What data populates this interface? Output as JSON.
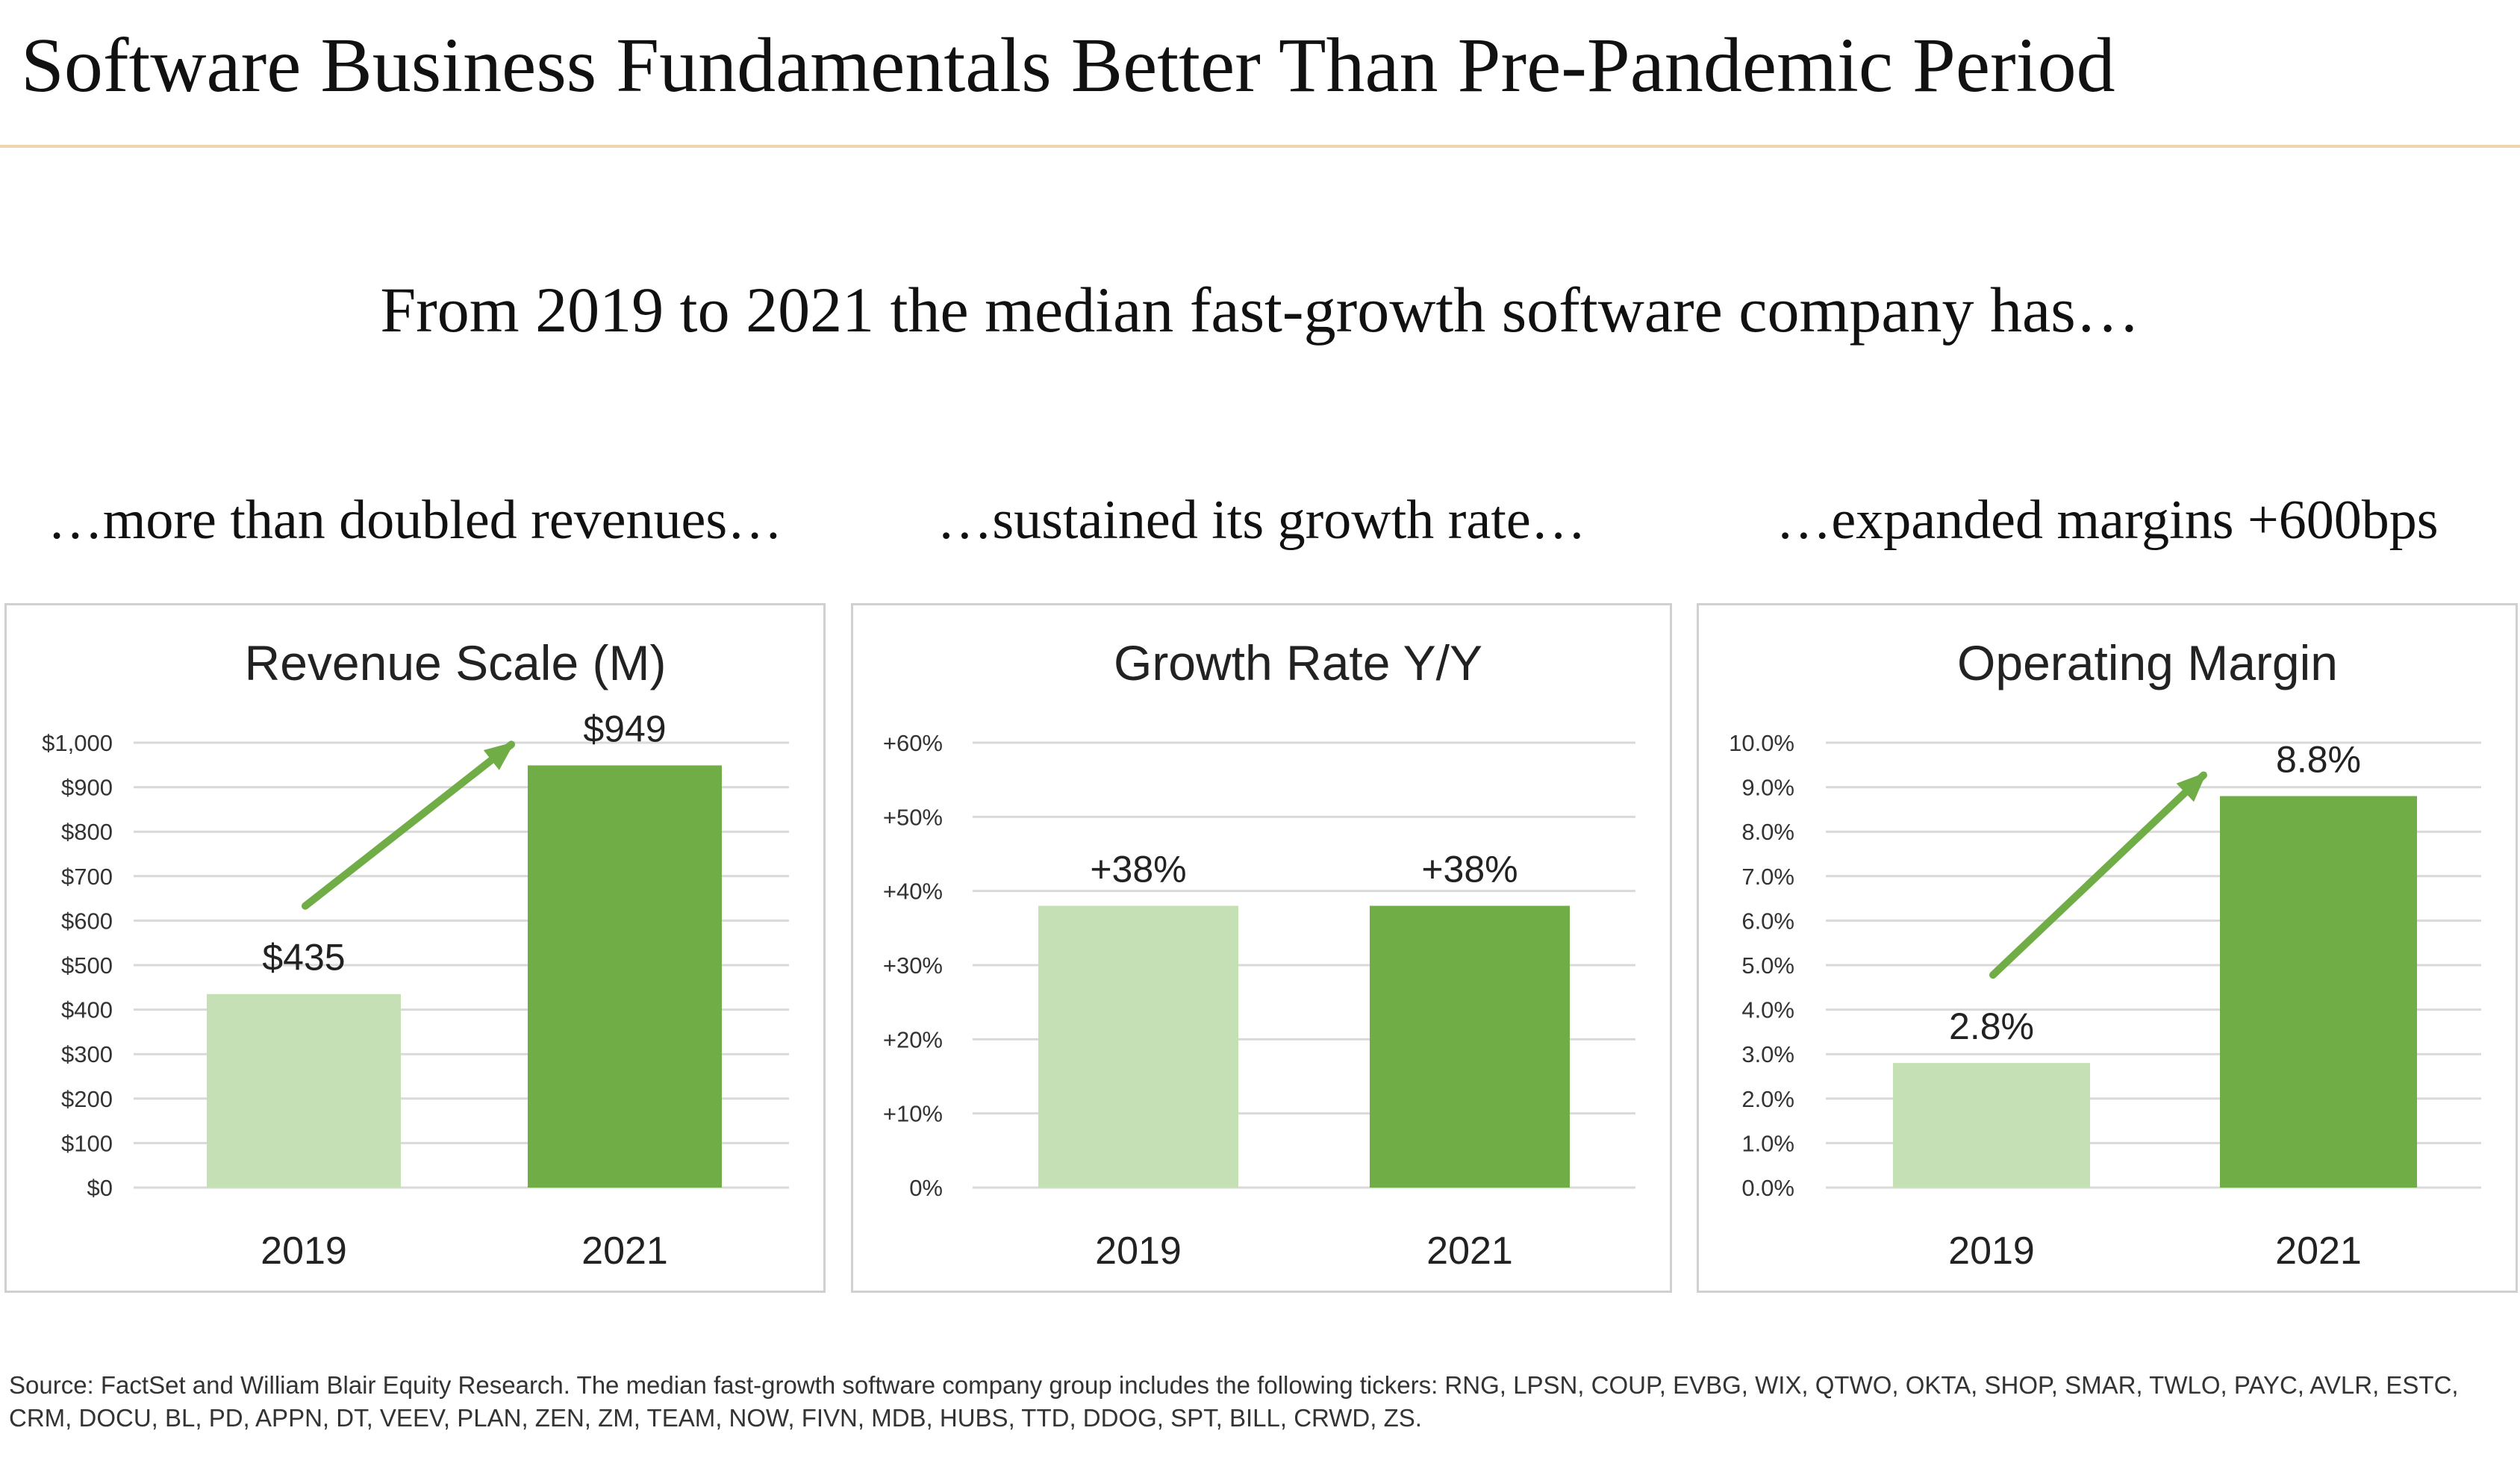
{
  "header": {
    "title": "Software Business Fundamentals Better Than Pre-Pandemic Period",
    "subtitle": "From 2019 to 2021 the median fast-growth software company has…"
  },
  "captions": [
    "…more than doubled revenues…",
    "…sustained its growth rate…",
    "…expanded margins +600bps"
  ],
  "colors": {
    "bar_2019": "#c5e0b4",
    "bar_2021": "#70ad47",
    "arrow": "#70ad47",
    "gridline": "#d9d9d9",
    "title_rule": "#f1d5aa"
  },
  "chart_data": [
    {
      "type": "bar",
      "title": "Revenue Scale (M)",
      "categories": [
        "2019",
        "2021"
      ],
      "values": [
        435,
        949
      ],
      "data_labels": [
        "$435",
        "$949"
      ],
      "ylim": [
        0,
        1000
      ],
      "yticks": [
        0,
        100,
        200,
        300,
        400,
        500,
        600,
        700,
        800,
        900,
        1000
      ],
      "ytick_labels": [
        "$0",
        "$100",
        "$200",
        "$300",
        "$400",
        "$500",
        "$600",
        "$700",
        "$800",
        "$900",
        "$1,000"
      ],
      "grid": true,
      "trend_arrow": true
    },
    {
      "type": "bar",
      "title": "Growth Rate Y/Y",
      "categories": [
        "2019",
        "2021"
      ],
      "values": [
        38,
        38
      ],
      "data_labels": [
        "+38%",
        "+38%"
      ],
      "ylim": [
        0,
        60
      ],
      "yticks": [
        0,
        10,
        20,
        30,
        40,
        50,
        60
      ],
      "ytick_labels": [
        "0%",
        "+10%",
        "+20%",
        "+30%",
        "+40%",
        "+50%",
        "+60%"
      ],
      "grid": true,
      "trend_arrow": false
    },
    {
      "type": "bar",
      "title": "Operating Margin",
      "categories": [
        "2019",
        "2021"
      ],
      "values": [
        2.8,
        8.8
      ],
      "data_labels": [
        "2.8%",
        "8.8%"
      ],
      "ylim": [
        0,
        10
      ],
      "yticks": [
        0,
        1,
        2,
        3,
        4,
        5,
        6,
        7,
        8,
        9,
        10
      ],
      "ytick_labels": [
        "0.0%",
        "1.0%",
        "2.0%",
        "3.0%",
        "4.0%",
        "5.0%",
        "6.0%",
        "7.0%",
        "8.0%",
        "9.0%",
        "10.0%"
      ],
      "grid": true,
      "trend_arrow": true
    }
  ],
  "footnote": "Source: FactSet and William Blair Equity Research. The median fast-growth software company group includes the following tickers: RNG, LPSN, COUP, EVBG, WIX, QTWO, OKTA, SHOP, SMAR, TWLO, PAYC, AVLR, ESTC, CRM, DOCU, BL, PD, APPN, DT, VEEV, PLAN, ZEN, ZM, TEAM, NOW, FIVN, MDB, HUBS, TTD, DDOG, SPT, BILL, CRWD, ZS."
}
